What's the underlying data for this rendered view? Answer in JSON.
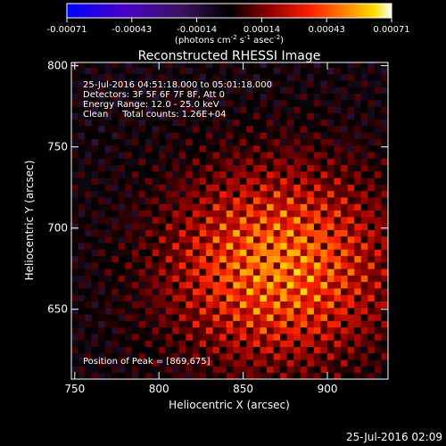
{
  "chart_data": {
    "type": "heatmap",
    "title": "Reconstructed RHESSI Image",
    "xlabel": "Heliocentric X (arcsec)",
    "ylabel": "Heliocentric Y (arcsec)",
    "xlim": [
      748,
      936
    ],
    "ylim": [
      607,
      802
    ],
    "x_ticks": [
      750,
      800,
      850,
      900
    ],
    "y_ticks": [
      650,
      700,
      750,
      800
    ],
    "colorbar": {
      "range": [
        -0.00071,
        0.00071
      ],
      "ticks": [
        "-0.00071",
        "-0.00043",
        "-0.00014",
        "0.00014",
        "0.00043",
        "0.00071"
      ],
      "unit_base": "(photons cm",
      "unit_exp1": "-2",
      "unit_mid": " s",
      "unit_exp2": "-1",
      "unit_mid2": " asec",
      "unit_exp3": "-2",
      "unit_end": ")"
    },
    "annotations": [
      "25-Jul-2016 04:51:18.000 to 05:01:18.000",
      "Detectors: 3F 5F 6F 7F 8F, Att 0",
      "Energy Range: 12.0 - 25.0 keV",
      "Clean     Total counts: 1.26E+04"
    ],
    "peak_label": "Position of Peak = [869,675]",
    "peak_position": [
      869,
      675
    ],
    "color_scale": [
      "#0000ff",
      "#4800a8",
      "#3a1a4a",
      "#000000",
      "#8a0000",
      "#ff2200",
      "#ff8800",
      "#ffdd00",
      "#ffffff"
    ]
  },
  "footer_date": "25-Jul-2016 02:09"
}
